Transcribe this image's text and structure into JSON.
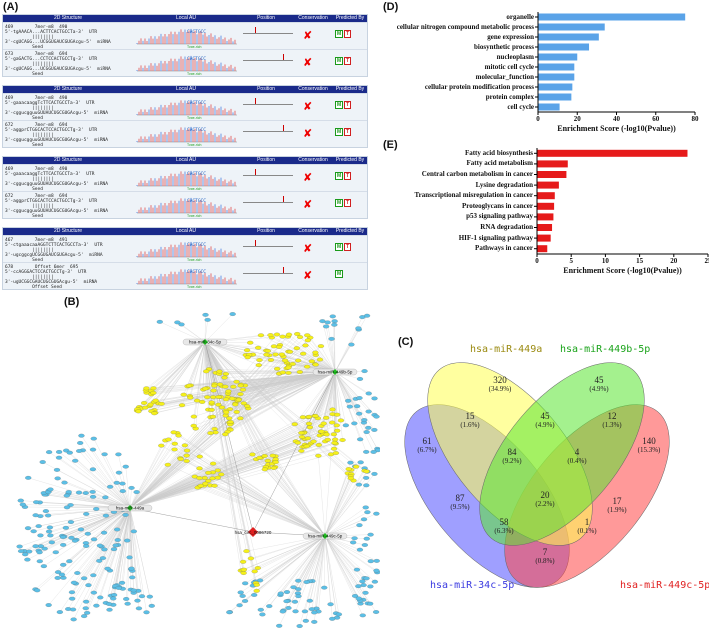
{
  "labels": {
    "A": "(A)",
    "B": "(B)",
    "C": "(C)",
    "D": "(D)",
    "E": "(E)"
  },
  "panelA": {
    "headers": [
      "2D Structure",
      "Local AU",
      "Position",
      "Conservation",
      "Predicted By"
    ],
    "blocks": [
      {
        "rows": [
          {
            "start": "469",
            "end": "490",
            "top": "5'-tgAAACA...ACTTCACTGCCTa-3'  UTR",
            "bot": "3'-cgUCAGG...UCGGUGAUCGUGAcgu-5'  miRNA",
            "tag": "7mer-m8",
            "tag2": "Seed",
            "badges": [
              "M",
              "T"
            ]
          },
          {
            "start": "673",
            "end": "694",
            "top": "5'-gaGACTG...CCTCCACTGCCTg-3'  UTR",
            "bot": "3'-cgUCAGG...UCGGUGAUCGUGAcgu-5'  miRNA",
            "tag": "7mer-m8",
            "tag2": "Seed",
            "badges": [
              "M",
              "T"
            ]
          }
        ]
      },
      {
        "rows": [
          {
            "start": "469",
            "end": "490",
            "top": "5'-gaaacaaggTcTTCACTGCCTa-3'  UTR",
            "bot": "3'-cggucgguuGUUAUCUGCGUGAcgu-5'  miRNA",
            "tag": "7mer-m8",
            "tag2": "Seed",
            "badges": [
              "M",
              "T"
            ]
          },
          {
            "start": "672",
            "end": "694",
            "top": "5'-aggprCTGGCACTCCACTGCCTg-3'  UTR",
            "bot": "3'-cggucgguuGUUAUCUGCGUGAcgu-5'  miRNA",
            "tag": "7mer-m8",
            "tag2": "Seed",
            "badges": [
              "M",
              "T"
            ]
          }
        ]
      },
      {
        "rows": [
          {
            "start": "469",
            "end": "490",
            "top": "5'-gaaacaaggTcTTCACTGCCTa-3'  UTR",
            "bot": "3'-cggucgguuGUUAUCUGCGUGAcgu-5'  miRNA",
            "tag": "7mer-m8",
            "tag2": "Seed",
            "badges": [
              "M",
              "T"
            ]
          },
          {
            "start": "672",
            "end": "694",
            "top": "5'-aggprCTGGCACTCCACTGCCTg-3'  UTR",
            "bot": "3'-cggucgguuGUUAUCUGCGUGAcgu-5'  miRNA",
            "tag": "7mer-m8",
            "tag2": "Seed",
            "badges": [
              "M",
              "T"
            ]
          }
        ]
      },
      {
        "rows": [
          {
            "start": "467",
            "end": "491",
            "top": "5'-ctgaaacaaAGGTCTTCACTGCCTa-3'  UTR",
            "bot": "3'-ugcggcgUCGGUGAUCGUGAcgu-5'  miRNA",
            "tag": "7mer-m8",
            "tag2": "Seed",
            "badges": [
              "M",
              "T"
            ]
          },
          {
            "start": "678",
            "end": "695",
            "top": "5'-ccAGGGACTCCACTGCCTg-3'  UTR",
            "bot": "3'-ugUCGGCGAUCUGCGUGAcgu-5'  miRNA",
            "tag": "Offset 6mer",
            "tag2": "Offset Seed",
            "badges": [
              "M"
            ]
          }
        ]
      }
    ],
    "au_label": "CACTGCC",
    "au_note": "Type-rich"
  },
  "network": {
    "hubs": [
      "hsa-miR-34c-5p",
      "hsa-miR-449b-5p",
      "hsa-miR-449a",
      "hsa-miR-449c-5p"
    ],
    "center": "hsa_circ_0086720"
  },
  "chartD": {
    "type": "bar",
    "categories": [
      "cell cycle",
      "protein complex",
      "cellular protein modification process",
      "molecular_function",
      "mitotic cell cycle",
      "nucleoplasm",
      "biosynthetic process",
      "gene expression",
      "cellular nitrogen compound metabolic process",
      "organelle"
    ],
    "values": [
      11,
      17,
      17.5,
      18.5,
      18.5,
      20,
      26,
      31,
      34,
      75
    ],
    "xlim": [
      0,
      80
    ],
    "xticks": [
      0,
      20,
      40,
      60,
      80
    ],
    "xlabel": "Enrichment Score (-log10(Pvalue))",
    "color": "#5aa3e8"
  },
  "chartE": {
    "type": "bar",
    "categories": [
      "Pathways in cancer",
      "HIF-1 signaling pathway",
      "RNA degradation",
      "p53 signaling pathway",
      "Proteoglycans in cancer",
      "Transcriptional misregulation in cancer",
      "Lysine degradation",
      "Central carbon metabolism in cancer",
      "Fatty acid metabolism",
      "Fatty acid biosynthesis"
    ],
    "values": [
      1.5,
      2,
      2.2,
      2.4,
      2.5,
      2.6,
      3.2,
      4.3,
      4.5,
      22
    ],
    "xlim": [
      0,
      25
    ],
    "xticks": [
      0,
      5,
      10,
      15,
      20,
      25
    ],
    "xlabel": "Enrichment Score (-log10(Pvalue))",
    "color": "#e61a1a"
  },
  "venn": {
    "sets": [
      {
        "name": "hsa-miR-449a",
        "color": "#9a8a10"
      },
      {
        "name": "hsa-miR-449b-5p",
        "color": "#1aa31a"
      },
      {
        "name": "hsa-miR-34c-5p",
        "color": "#3a3ae0"
      },
      {
        "name": "hsa-miR-449c-5p",
        "color": "#e02020"
      }
    ],
    "regions": [
      {
        "n": "320",
        "p": "(34.9%)"
      },
      {
        "n": "45",
        "p": "(4.9%)"
      },
      {
        "n": "15",
        "p": "(1.6%)"
      },
      {
        "n": "45",
        "p": "(4.9%)"
      },
      {
        "n": "12",
        "p": "(1.3%)"
      },
      {
        "n": "61",
        "p": "(6.7%)"
      },
      {
        "n": "84",
        "p": "(9.2%)"
      },
      {
        "n": "4",
        "p": "(0.4%)"
      },
      {
        "n": "140",
        "p": "(15.3%)"
      },
      {
        "n": "20",
        "p": "(2.2%)"
      },
      {
        "n": "87",
        "p": "(9.5%)"
      },
      {
        "n": "17",
        "p": "(1.9%)"
      },
      {
        "n": "58",
        "p": "(6.3%)"
      },
      {
        "n": "1",
        "p": "(0.1%)"
      },
      {
        "n": "7",
        "p": "(0.8%)"
      }
    ]
  }
}
